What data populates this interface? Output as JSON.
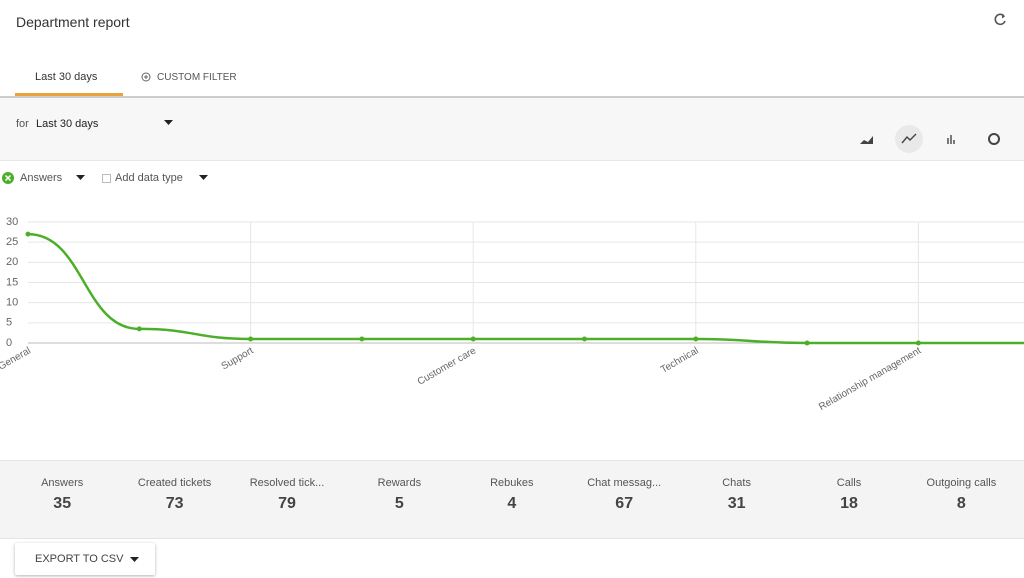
{
  "header": {
    "title": "Department report"
  },
  "tabs": [
    "Last 30 days",
    "CUSTOM FILTER"
  ],
  "filter": {
    "prefix": "for",
    "value": "Last 30 days"
  },
  "legend": {
    "add_label": "Add data type"
  },
  "chart_data": {
    "type": "line",
    "categories": [
      "General",
      null,
      "Support",
      null,
      "Customer care",
      null,
      "Technical",
      null,
      "Relationship management",
      null
    ],
    "series": [
      {
        "name": "Answers",
        "color": "#4caf2a",
        "values": [
          27,
          3.5,
          1,
          1,
          1,
          1,
          1,
          0,
          0,
          0
        ]
      }
    ],
    "ylim": [
      0,
      30
    ],
    "yticks": [
      0,
      5,
      10,
      15,
      20,
      25,
      30
    ],
    "grid": true
  },
  "stats": [
    {
      "label": "Answers",
      "value": 35
    },
    {
      "label": "Created tickets",
      "value": 73
    },
    {
      "label": "Resolved tick...",
      "value": 79
    },
    {
      "label": "Rewards",
      "value": 5
    },
    {
      "label": "Rebukes",
      "value": 4
    },
    {
      "label": "Chat messag...",
      "value": 67
    },
    {
      "label": "Chats",
      "value": 31
    },
    {
      "label": "Calls",
      "value": 18
    },
    {
      "label": "Outgoing calls",
      "value": 8
    }
  ],
  "export": {
    "label": "EXPORT TO CSV"
  }
}
